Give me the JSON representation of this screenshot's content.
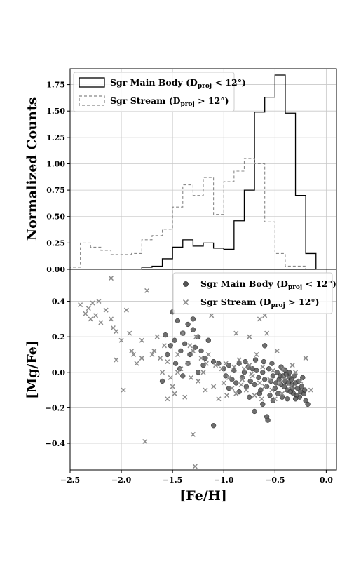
{
  "chart_data": [
    {
      "type": "histogram",
      "ylabel": "Normalized Counts",
      "xlim": [
        -2.5,
        0.1
      ],
      "ylim": [
        0,
        1.9
      ],
      "yticks": [
        0.0,
        0.25,
        0.5,
        0.75,
        1.0,
        1.25,
        1.5,
        1.75
      ],
      "ytick_labels": [
        "0.00",
        "0.25",
        "0.50",
        "0.75",
        "1.00",
        "1.25",
        "1.50",
        "1.75"
      ],
      "grid": true,
      "legend_position": "top-left",
      "bin_width": 0.1,
      "series": [
        {
          "name": "Sgr Main Body (D",
          "name_sub": "proj",
          "name_tail": " < 12°)",
          "style": "solid",
          "color": "#000000",
          "bin_edges": [
            -1.8,
            -1.7,
            -1.6,
            -1.5,
            -1.4,
            -1.3,
            -1.2,
            -1.1,
            -1.0,
            -0.9,
            -0.8,
            -0.7,
            -0.6,
            -0.5,
            -0.4,
            -0.3,
            -0.2,
            -0.1
          ],
          "values": [
            0.02,
            0.03,
            0.1,
            0.21,
            0.28,
            0.22,
            0.25,
            0.2,
            0.19,
            0.46,
            0.75,
            1.49,
            1.63,
            1.84,
            1.48,
            0.7,
            0.15
          ]
        },
        {
          "name": "Sgr Stream (D",
          "name_sub": "proj",
          "name_tail": " > 12°)",
          "style": "dashed",
          "color": "#888888",
          "bin_edges": [
            -2.5,
            -2.4,
            -2.3,
            -2.2,
            -2.1,
            -2.0,
            -1.9,
            -1.8,
            -1.7,
            -1.6,
            -1.5,
            -1.4,
            -1.3,
            -1.2,
            -1.1,
            -1.0,
            -0.9,
            -0.8,
            -0.7,
            -0.6,
            -0.5,
            -0.4,
            -0.3,
            -0.2
          ],
          "values": [
            0.02,
            0.25,
            0.21,
            0.18,
            0.14,
            0.14,
            0.15,
            0.28,
            0.32,
            0.38,
            0.59,
            0.8,
            0.7,
            0.87,
            0.52,
            0.83,
            0.93,
            1.05,
            1.0,
            0.45,
            0.15,
            0.03,
            0.03
          ]
        }
      ]
    },
    {
      "type": "scatter",
      "xlabel": "[Fe/H]",
      "ylabel": "[Mg/Fe]",
      "xlim": [
        -2.5,
        0.1
      ],
      "ylim": [
        -0.55,
        0.58
      ],
      "xticks": [
        -2.5,
        -2.0,
        -1.5,
        -1.0,
        -0.5,
        0.0
      ],
      "xtick_labels": [
        "−2.5",
        "−2.0",
        "−1.5",
        "−1.0",
        "−0.5",
        "0.0"
      ],
      "yticks": [
        -0.4,
        -0.2,
        0.0,
        0.2,
        0.4
      ],
      "ytick_labels": [
        "−0.4",
        "−0.2",
        "0.0",
        "0.2",
        "0.4"
      ],
      "grid": true,
      "legend_position": "top-right",
      "series": [
        {
          "name": "Sgr Main Body (D",
          "name_sub": "proj",
          "name_tail": " < 12°)",
          "marker": "circle",
          "color": "#555555",
          "points": [
            [
              -1.5,
              0.34
            ],
            [
              -1.45,
              0.29
            ],
            [
              -1.4,
              0.22
            ],
            [
              -1.35,
              0.27
            ],
            [
              -1.3,
              0.24
            ],
            [
              -1.25,
              0.2
            ],
            [
              -1.55,
              0.1
            ],
            [
              -1.52,
              0.15
            ],
            [
              -1.48,
              0.18
            ],
            [
              -1.42,
              0.12
            ],
            [
              -1.38,
              0.16
            ],
            [
              -1.33,
              0.1
            ],
            [
              -1.28,
              0.14
            ],
            [
              -1.22,
              0.12
            ],
            [
              -1.18,
              0.08
            ],
            [
              -1.15,
              0.18
            ],
            [
              -1.1,
              0.06
            ],
            [
              -1.05,
              0.05
            ],
            [
              -1.6,
              -0.05
            ],
            [
              -1.57,
              0.21
            ],
            [
              -1.47,
              0.05
            ],
            [
              -1.43,
              0.02
            ],
            [
              -1.3,
              0.3
            ],
            [
              -1.2,
              0.04
            ],
            [
              -1.0,
              0.02
            ],
            [
              -0.98,
              -0.02
            ],
            [
              -0.95,
              0.04
            ],
            [
              -0.92,
              -0.04
            ],
            [
              -0.9,
              0.01
            ],
            [
              -0.88,
              -0.06
            ],
            [
              -0.85,
              0.05
            ],
            [
              -0.82,
              -0.03
            ],
            [
              -0.8,
              0.0
            ],
            [
              -0.78,
              -0.08
            ],
            [
              -0.76,
              0.03
            ],
            [
              -0.74,
              -0.05
            ],
            [
              -0.72,
              0.02
            ],
            [
              -0.7,
              -0.07
            ],
            [
              -0.68,
              0.01
            ],
            [
              -0.66,
              -0.03
            ],
            [
              -0.64,
              -0.1
            ],
            [
              -0.62,
              0.0
            ],
            [
              -0.6,
              -0.04
            ],
            [
              -0.58,
              -0.08
            ],
            [
              -0.56,
              0.02
            ],
            [
              -0.54,
              -0.05
            ],
            [
              -0.52,
              -0.02
            ],
            [
              -0.5,
              -0.09
            ],
            [
              -0.48,
              0.0
            ],
            [
              -0.46,
              -0.04
            ],
            [
              -0.44,
              -0.07
            ],
            [
              -0.42,
              -0.02
            ],
            [
              -0.4,
              -0.05
            ],
            [
              -0.38,
              -0.1
            ],
            [
              -0.36,
              -0.03
            ],
            [
              -0.34,
              -0.07
            ],
            [
              -0.32,
              -0.12
            ],
            [
              -0.3,
              -0.06
            ],
            [
              -0.28,
              -0.09
            ],
            [
              -0.26,
              -0.14
            ],
            [
              -0.24,
              -0.08
            ],
            [
              -0.22,
              -0.12
            ],
            [
              -0.2,
              -0.16
            ],
            [
              -0.18,
              -0.18
            ],
            [
              -0.47,
              -0.12
            ],
            [
              -0.43,
              -0.14
            ],
            [
              -0.39,
              -0.01
            ],
            [
              -0.35,
              -0.11
            ],
            [
              -0.31,
              -0.02
            ],
            [
              -0.27,
              -0.05
            ],
            [
              -0.23,
              -0.03
            ],
            [
              -0.45,
              -0.02
            ],
            [
              -0.41,
              -0.08
            ],
            [
              -0.37,
              -0.06
            ],
            [
              -0.33,
              -0.09
            ],
            [
              -0.29,
              -0.13
            ],
            [
              -0.25,
              -0.11
            ],
            [
              -0.21,
              -0.1
            ],
            [
              -0.55,
              -0.13
            ],
            [
              -0.65,
              -0.12
            ],
            [
              -0.75,
              -0.14
            ],
            [
              -0.85,
              -0.11
            ],
            [
              -0.95,
              -0.09
            ],
            [
              -1.1,
              -0.3
            ],
            [
              -0.7,
              -0.22
            ],
            [
              -0.62,
              -0.18
            ],
            [
              -0.57,
              -0.27
            ],
            [
              -0.52,
              -0.16
            ],
            [
              -0.49,
              -0.06
            ],
            [
              -0.44,
              0.03
            ],
            [
              -0.4,
              0.01
            ],
            [
              -0.36,
              0.0
            ],
            [
              -0.53,
              0.05
            ],
            [
              -0.61,
              0.06
            ],
            [
              -0.69,
              0.07
            ],
            [
              -0.79,
              0.06
            ],
            [
              -1.25,
              0.0
            ],
            [
              -1.35,
              0.05
            ],
            [
              -1.4,
              -0.02
            ],
            [
              -0.38,
              -0.15
            ],
            [
              -0.34,
              -0.04
            ],
            [
              -0.3,
              -0.15
            ],
            [
              -0.6,
              0.15
            ],
            [
              -0.58,
              -0.25
            ]
          ]
        },
        {
          "name": "Sgr Stream (D",
          "name_sub": "proj",
          "name_tail": " > 12°)",
          "marker": "x",
          "color": "#8c8c8c",
          "points": [
            [
              -2.4,
              0.38
            ],
            [
              -2.35,
              0.33
            ],
            [
              -2.32,
              0.36
            ],
            [
              -2.3,
              0.3
            ],
            [
              -2.28,
              0.39
            ],
            [
              -2.25,
              0.32
            ],
            [
              -2.22,
              0.4
            ],
            [
              -2.2,
              0.28
            ],
            [
              -2.15,
              0.35
            ],
            [
              -2.1,
              0.3
            ],
            [
              -2.08,
              0.25
            ],
            [
              -2.05,
              0.23
            ],
            [
              -1.95,
              0.35
            ],
            [
              -1.92,
              0.22
            ],
            [
              -1.9,
              0.12
            ],
            [
              -2.0,
              0.18
            ],
            [
              -1.98,
              -0.1
            ],
            [
              -2.1,
              0.53
            ],
            [
              -2.05,
              0.07
            ],
            [
              -1.85,
              0.05
            ],
            [
              -1.8,
              0.18
            ],
            [
              -1.75,
              0.46
            ],
            [
              -1.77,
              -0.39
            ],
            [
              -1.7,
              0.1
            ],
            [
              -1.65,
              0.2
            ],
            [
              -1.62,
              0.08
            ],
            [
              -1.6,
              0.0
            ],
            [
              -1.58,
              0.15
            ],
            [
              -1.55,
              0.06
            ],
            [
              -1.52,
              -0.03
            ],
            [
              -1.5,
              -0.08
            ],
            [
              -1.48,
              -0.12
            ],
            [
              -1.45,
              0.1
            ],
            [
              -1.42,
              0.02
            ],
            [
              -1.4,
              0.22
            ],
            [
              -1.38,
              -0.14
            ],
            [
              -1.35,
              0.05
            ],
            [
              -1.32,
              -0.03
            ],
            [
              -1.3,
              0.12
            ],
            [
              -1.28,
              -0.53
            ],
            [
              -1.25,
              -0.05
            ],
            [
              -1.22,
              0.08
            ],
            [
              -1.2,
              0.0
            ],
            [
              -1.18,
              -0.1
            ],
            [
              -1.15,
              0.1
            ],
            [
              -1.12,
              0.32
            ],
            [
              -1.1,
              -0.08
            ],
            [
              -1.08,
              0.04
            ],
            [
              -1.05,
              -0.15
            ],
            [
              -1.02,
              0.02
            ],
            [
              -1.0,
              -0.06
            ],
            [
              -0.98,
              0.05
            ],
            [
              -0.95,
              -0.03
            ],
            [
              -0.92,
              -0.09
            ],
            [
              -0.9,
              0.03
            ],
            [
              -0.88,
              -0.12
            ],
            [
              -0.85,
              0.07
            ],
            [
              -0.82,
              -0.04
            ],
            [
              -0.8,
              0.02
            ],
            [
              -0.78,
              -0.1
            ],
            [
              -0.75,
              0.04
            ],
            [
              -0.72,
              -0.02
            ],
            [
              -0.7,
              -0.13
            ],
            [
              -0.68,
              0.1
            ],
            [
              -0.65,
              -0.06
            ],
            [
              -0.62,
              0.03
            ],
            [
              -0.6,
              -0.08
            ],
            [
              -0.58,
              0.22
            ],
            [
              -0.55,
              -0.04
            ],
            [
              -0.52,
              0.01
            ],
            [
              -0.5,
              -0.15
            ],
            [
              -0.48,
              0.12
            ],
            [
              -0.45,
              -0.06
            ],
            [
              -0.42,
              0.02
            ],
            [
              -0.4,
              -0.03
            ],
            [
              -0.35,
              -0.08
            ],
            [
              -0.3,
              0.0
            ],
            [
              -0.25,
              -0.05
            ],
            [
              -0.2,
              0.08
            ],
            [
              -0.88,
              0.22
            ],
            [
              -0.75,
              0.2
            ],
            [
              -0.6,
              0.32
            ],
            [
              -0.65,
              0.3
            ],
            [
              -1.3,
              -0.35
            ],
            [
              -1.55,
              -0.15
            ],
            [
              -1.45,
              0.0
            ],
            [
              -1.68,
              0.12
            ],
            [
              -1.8,
              0.08
            ],
            [
              -1.88,
              0.1
            ],
            [
              -1.27,
              0.2
            ],
            [
              -1.17,
              0.05
            ],
            [
              -1.33,
              0.15
            ],
            [
              -0.97,
              -0.13
            ],
            [
              -0.83,
              -0.07
            ],
            [
              -0.73,
              -0.01
            ],
            [
              -0.63,
              -0.15
            ],
            [
              -0.53,
              -0.1
            ],
            [
              -0.43,
              -0.12
            ],
            [
              -0.33,
              0.04
            ],
            [
              -0.15,
              -0.1
            ]
          ]
        }
      ]
    }
  ]
}
